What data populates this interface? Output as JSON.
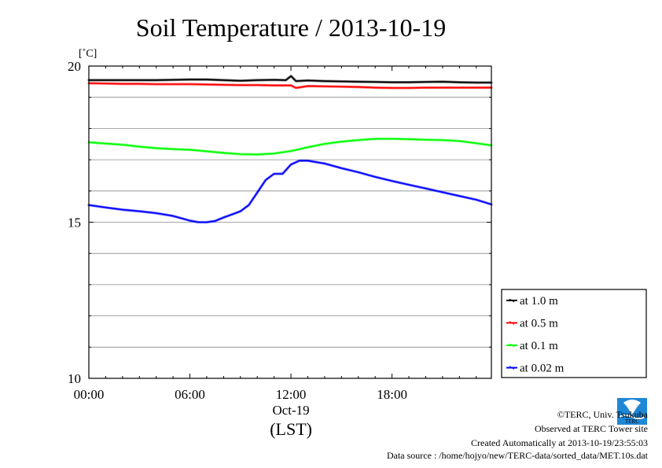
{
  "chart_data": {
    "type": "line",
    "title": "Soil Temperature / 2013-10-19",
    "unit_label": "[˚C]",
    "ylim": [
      10,
      20
    ],
    "y_ticks": [
      10,
      15,
      20
    ],
    "y_minor_step": 1,
    "xlim_hours": [
      0,
      23.9
    ],
    "x_tick_labels": [
      "00:00",
      "06:00",
      "12:00",
      "18:00"
    ],
    "x_tick_hours": [
      0,
      6,
      12,
      18
    ],
    "x_date_label": "Oct-19",
    "x_axis_label": "(LST)",
    "grid": true,
    "legend_position": "right",
    "series": [
      {
        "name": "at 1.0 m",
        "color": "#000000",
        "x": [
          0,
          1,
          2,
          3,
          4,
          5,
          6,
          7,
          8,
          9,
          10,
          11,
          11.7,
          12,
          12.3,
          13,
          14,
          15,
          16,
          17,
          18,
          19,
          20,
          21,
          22,
          23,
          23.9
        ],
        "y": [
          19.55,
          19.55,
          19.55,
          19.55,
          19.55,
          19.56,
          19.57,
          19.57,
          19.55,
          19.53,
          19.55,
          19.56,
          19.55,
          19.68,
          19.52,
          19.54,
          19.52,
          19.51,
          19.5,
          19.49,
          19.48,
          19.48,
          19.49,
          19.5,
          19.48,
          19.47,
          19.47
        ]
      },
      {
        "name": "at 0.5 m",
        "color": "#ff0000",
        "x": [
          0,
          1,
          2,
          3,
          4,
          5,
          6,
          7,
          8,
          9,
          10,
          11,
          12,
          12.3,
          13,
          14,
          15,
          16,
          17,
          18,
          19,
          20,
          21,
          22,
          23,
          23.9
        ],
        "y": [
          19.45,
          19.44,
          19.43,
          19.43,
          19.42,
          19.42,
          19.42,
          19.41,
          19.4,
          19.39,
          19.39,
          19.38,
          19.38,
          19.3,
          19.36,
          19.35,
          19.34,
          19.33,
          19.31,
          19.3,
          19.3,
          19.31,
          19.31,
          19.31,
          19.31,
          19.31
        ]
      },
      {
        "name": "at 0.1 m",
        "color": "#00ff00",
        "x": [
          0,
          1,
          2,
          3,
          4,
          5,
          6,
          7,
          8,
          9,
          10,
          11,
          12,
          13,
          14,
          15,
          16,
          17,
          18,
          19,
          20,
          21,
          22,
          23,
          23.9
        ],
        "y": [
          17.56,
          17.52,
          17.48,
          17.42,
          17.37,
          17.34,
          17.32,
          17.27,
          17.22,
          17.18,
          17.17,
          17.2,
          17.28,
          17.4,
          17.51,
          17.58,
          17.63,
          17.67,
          17.67,
          17.66,
          17.64,
          17.63,
          17.6,
          17.53,
          17.46
        ]
      },
      {
        "name": "at 0.02 m",
        "color": "#0000ff",
        "x": [
          0,
          1,
          2,
          3,
          4,
          5,
          6,
          6.5,
          7,
          7.5,
          8,
          8.5,
          9,
          9.5,
          10,
          10.5,
          11,
          11.5,
          12,
          12.5,
          13,
          14,
          15,
          16,
          17,
          18,
          19,
          20,
          21,
          22,
          23,
          23.9
        ],
        "y": [
          15.55,
          15.47,
          15.4,
          15.35,
          15.29,
          15.2,
          15.05,
          15.0,
          15.0,
          15.04,
          15.15,
          15.25,
          15.35,
          15.55,
          15.95,
          16.35,
          16.55,
          16.55,
          16.85,
          16.97,
          16.97,
          16.88,
          16.73,
          16.6,
          16.45,
          16.32,
          16.2,
          16.08,
          15.96,
          15.84,
          15.72,
          15.57
        ]
      }
    ]
  },
  "footer": {
    "copyright": "©TERC, Univ. Tsukuba",
    "observed": "Observed at TERC Tower site",
    "created": "Created Automatically at 2013-10-19/23:55:03",
    "source": "Data source : /home/hojyo/new/TERC-data/sorted_data/MET.10s.dat",
    "logo_text": "TERC"
  }
}
